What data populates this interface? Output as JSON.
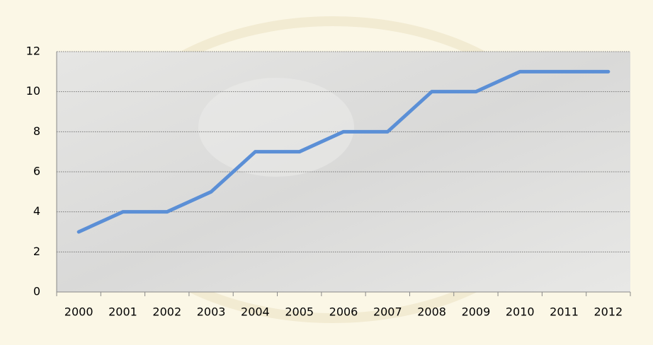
{
  "chart_data": {
    "type": "line",
    "categories": [
      "2000",
      "2001",
      "2002",
      "2003",
      "2004",
      "2005",
      "2006",
      "2007",
      "2008",
      "2009",
      "2010",
      "2011",
      "2012"
    ],
    "values": [
      3,
      4,
      4,
      5,
      7,
      7,
      8,
      8,
      10,
      10,
      11,
      11,
      11
    ],
    "color": "#5b8fd6",
    "ylim": [
      0,
      12
    ],
    "yticks": [
      0,
      2,
      4,
      6,
      8,
      10,
      12
    ],
    "grid": true
  }
}
